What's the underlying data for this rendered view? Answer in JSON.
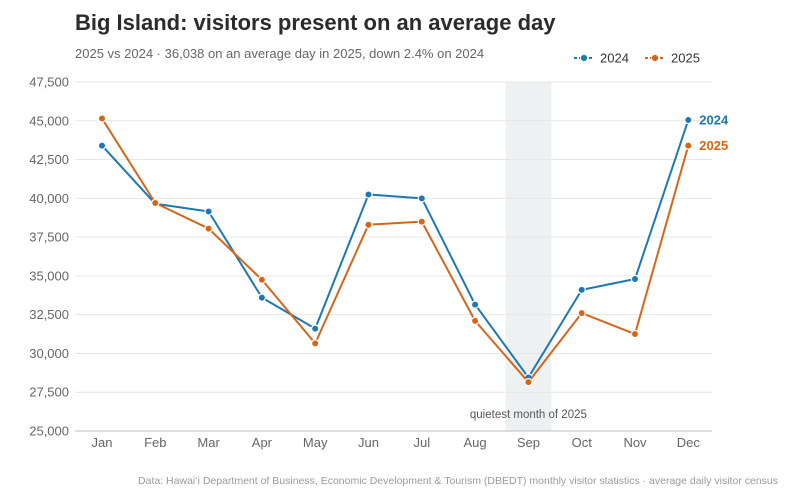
{
  "header": {
    "title": "Big Island: visitors present on an average day",
    "subtitle": "2025 vs 2024  ·  36,038 on an average day in 2025, down 2.4% on 2024"
  },
  "footer": {
    "source": "Data: Hawaiʻi Department of Business, Economic Development & Tourism (DBEDT) monthly visitor statistics · average daily visitor census"
  },
  "chart_data": {
    "type": "line",
    "categories": [
      "Jan",
      "Feb",
      "Mar",
      "Apr",
      "May",
      "Jun",
      "Jul",
      "Aug",
      "Sep",
      "Oct",
      "Nov",
      "Dec"
    ],
    "series": [
      {
        "name": "2024",
        "color": "#1f77b4",
        "values": [
          43400,
          39650,
          39150,
          33600,
          31600,
          40250,
          40000,
          33150,
          28450,
          34100,
          34800,
          45050
        ]
      },
      {
        "name": "2025",
        "color": "#d4661a",
        "values": [
          45150,
          39700,
          38050,
          34750,
          30650,
          38300,
          38500,
          32100,
          28150,
          32600,
          31250,
          43400
        ]
      }
    ],
    "yticks": [
      25000,
      27500,
      30000,
      32500,
      35000,
      37500,
      40000,
      42500,
      45000,
      47500
    ],
    "ytick_labels": [
      "25,000",
      "27,500",
      "30,000",
      "32,500",
      "35,000",
      "37,500",
      "40,000",
      "42,500",
      "45,000",
      "47,500"
    ],
    "ylim": [
      25000,
      47500
    ],
    "grid": true,
    "legend_position": "top-right",
    "end_labels": true,
    "highlight": {
      "category": "Sep",
      "label": "quietest month of 2025",
      "color": "#eef1f2"
    }
  }
}
